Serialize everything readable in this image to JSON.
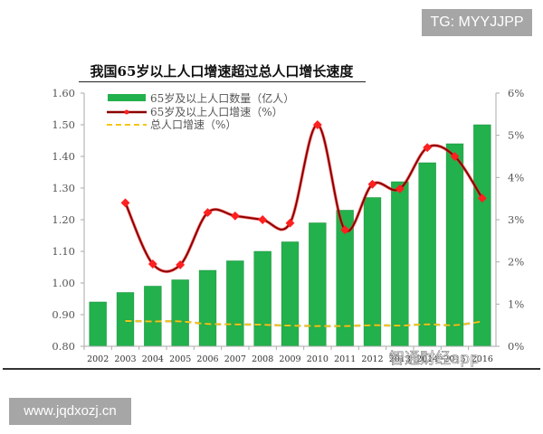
{
  "badges": {
    "top_right": "TG: MYYJJPP",
    "bottom_left": "www.jqdxozj.cn"
  },
  "watermark": "智通财经app",
  "colors": {
    "bar": "#22b14c",
    "bar_edge": "#1a8f3c",
    "line_65": "#8b0000",
    "marker_65": "#ff2020",
    "line_total": "#f5c518",
    "axis": "#aaaaaa"
  },
  "chart_data": {
    "type": "bar+line",
    "title": "我国65岁以上人口增速超过总人口增长速度",
    "categories": [
      "2002",
      "2003",
      "2004",
      "2005",
      "2006",
      "2007",
      "2008",
      "2009",
      "2010",
      "2011",
      "2012",
      "2013",
      "2014",
      "2015",
      "2016"
    ],
    "series": [
      {
        "name": "65岁及以上人口数量（亿人）",
        "type": "bar",
        "axis": "left",
        "values": [
          0.94,
          0.97,
          0.99,
          1.01,
          1.04,
          1.07,
          1.1,
          1.13,
          1.19,
          1.23,
          1.27,
          1.32,
          1.38,
          1.44,
          1.5
        ]
      },
      {
        "name": "65岁及以上人口增速（%）",
        "type": "line",
        "axis": "right",
        "values": [
          null,
          3.4,
          1.95,
          1.93,
          3.17,
          3.09,
          3.0,
          2.92,
          5.25,
          2.76,
          3.84,
          3.73,
          4.71,
          4.5,
          3.51
        ]
      },
      {
        "name": "总人口增速（%）",
        "type": "line",
        "style": "dashed",
        "axis": "right",
        "values": [
          null,
          0.6,
          0.59,
          0.59,
          0.53,
          0.52,
          0.51,
          0.49,
          0.48,
          0.48,
          0.5,
          0.49,
          0.52,
          0.5,
          0.59
        ]
      }
    ],
    "left_axis": {
      "ylim": [
        0.8,
        1.6
      ],
      "ticks": [
        "0.80",
        "0.90",
        "1.00",
        "1.10",
        "1.20",
        "1.30",
        "1.40",
        "1.50",
        "1.60"
      ]
    },
    "right_axis": {
      "ylim": [
        0,
        6
      ],
      "ticks": [
        "0%",
        "1%",
        "2%",
        "3%",
        "4%",
        "5%",
        "6%"
      ]
    },
    "legend_position": "top-left",
    "grid": false
  }
}
